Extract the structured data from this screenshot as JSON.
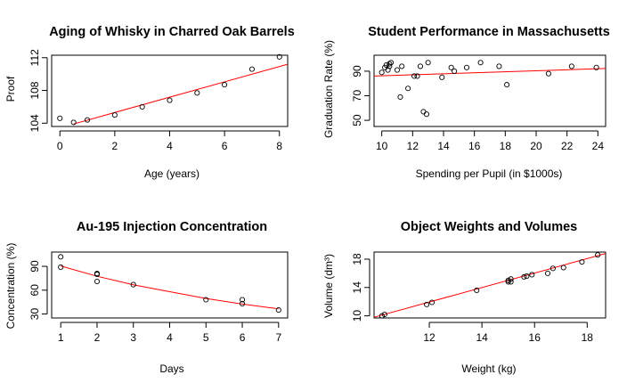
{
  "chart_data": [
    {
      "type": "scatter",
      "title": "Aging of Whisky in Charred Oak Barrels",
      "xlabel": "Age (years)",
      "ylabel": "Proof",
      "xlim": [
        -0.3,
        8.3
      ],
      "ylim": [
        103.6,
        112.3
      ],
      "xticks": [
        0,
        2,
        4,
        6,
        8
      ],
      "yticks": [
        104,
        108,
        112
      ],
      "x": [
        0,
        0.5,
        1,
        2,
        3,
        4,
        5,
        6,
        7,
        8
      ],
      "y": [
        104.6,
        104.1,
        104.4,
        105.0,
        106.0,
        106.8,
        107.7,
        108.7,
        110.6,
        112.1
      ],
      "fit_line": {
        "x": [
          0.5,
          8.3
        ],
        "y": [
          103.9,
          111.2
        ],
        "color": "#ff0000"
      }
    },
    {
      "type": "scatter",
      "title": "Student Performance in Massachusetts",
      "xlabel": "Spending per Pupil (in $1000s)",
      "ylabel": "Graduation Rate (%)",
      "xlim": [
        9.5,
        24.5
      ],
      "ylim": [
        45,
        103
      ],
      "xticks": [
        10,
        12,
        14,
        16,
        18,
        20,
        22,
        24
      ],
      "yticks": [
        50,
        70,
        90
      ],
      "x": [
        10.0,
        10.2,
        10.3,
        10.4,
        10.5,
        10.5,
        10.6,
        11.0,
        11.2,
        11.3,
        11.7,
        12.1,
        12.3,
        12.5,
        12.7,
        12.9,
        13.0,
        13.9,
        14.5,
        14.7,
        15.5,
        16.4,
        17.6,
        18.1,
        20.8,
        22.3,
        23.9
      ],
      "y": [
        89,
        93,
        95,
        91,
        96,
        94,
        97,
        91,
        69,
        94,
        76,
        86,
        86,
        94,
        57,
        55,
        97,
        85,
        93,
        90,
        93,
        97,
        94,
        79,
        88,
        94,
        93
      ],
      "fit_line": {
        "x": [
          9.5,
          24.5
        ],
        "y": [
          86.0,
          92.2
        ],
        "color": "#ff0000"
      }
    },
    {
      "type": "scatter",
      "title": "Au-195 Injection Concentration",
      "xlabel": "Days",
      "ylabel": "Concentration (%)",
      "xlim": [
        0.75,
        7.25
      ],
      "ylim": [
        25,
        108
      ],
      "xticks": [
        1,
        2,
        3,
        4,
        5,
        6,
        7
      ],
      "yticks": [
        30,
        60,
        90
      ],
      "x": [
        1,
        1,
        2,
        2,
        2,
        3,
        5,
        6,
        6,
        7
      ],
      "y": [
        102,
        89,
        81,
        80,
        71,
        67,
        48,
        43,
        48,
        35
      ],
      "fit_curve": {
        "x": [
          1,
          2,
          3,
          4,
          5,
          6,
          7
        ],
        "y": [
          90.5,
          77.5,
          66.8,
          58.1,
          49.6,
          42.5,
          36.5
        ],
        "color": "#ff0000"
      }
    },
    {
      "type": "scatter",
      "title": "Object Weights and Volumes",
      "xlabel": "Weight (kg)",
      "ylabel": "Volume (dm³)",
      "xlim": [
        9.9,
        18.7
      ],
      "ylim": [
        9.7,
        19.0
      ],
      "xticks": [
        12,
        14,
        16,
        18
      ],
      "yticks": [
        10,
        14,
        18
      ],
      "x": [
        10.2,
        10.3,
        11.9,
        12.1,
        13.8,
        15.0,
        15.0,
        15.1,
        15.1,
        15.6,
        15.7,
        15.9,
        16.5,
        16.7,
        17.1,
        17.8,
        18.4
      ],
      "y": [
        10.0,
        10.2,
        11.6,
        11.9,
        13.6,
        14.8,
        15.0,
        15.2,
        14.8,
        15.5,
        15.6,
        15.8,
        16.0,
        16.7,
        16.8,
        17.6,
        18.6
      ],
      "fit_line": {
        "x": [
          9.9,
          18.7
        ],
        "y": [
          9.8,
          18.8
        ],
        "color": "#ff0000"
      }
    }
  ]
}
